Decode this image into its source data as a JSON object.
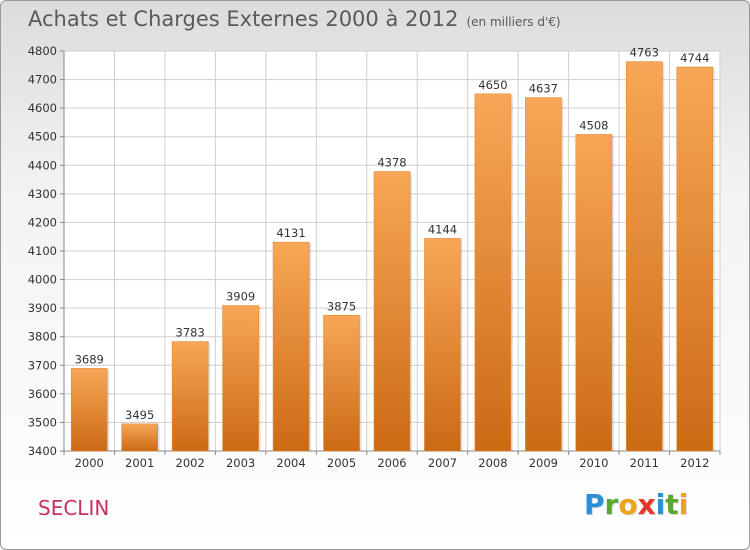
{
  "header": {
    "title": "Achats et Charges Externes 2000 à 2012",
    "subtitle": "(en milliers d'€)"
  },
  "commune": "SECLIN",
  "logo": {
    "letters": [
      "P",
      "r",
      "o",
      "x",
      "i",
      "t",
      "i"
    ],
    "colors": [
      "#2b8fd6",
      "#5aa832",
      "#f0a21a",
      "#e8352a",
      "#2b8fd6",
      "#5aa832",
      "#f0a21a"
    ]
  },
  "chart_data": {
    "type": "bar",
    "title": "Achats et Charges Externes 2000 à 2012",
    "subtitle": "(en milliers d'€)",
    "categories": [
      "2000",
      "2001",
      "2002",
      "2003",
      "2004",
      "2005",
      "2006",
      "2007",
      "2008",
      "2009",
      "2010",
      "2011",
      "2012"
    ],
    "values": [
      3689,
      3495,
      3783,
      3909,
      4131,
      3875,
      4378,
      4144,
      4650,
      4637,
      4508,
      4763,
      4744
    ],
    "ylim": [
      3400,
      4800
    ],
    "yticks": [
      3400,
      3500,
      3600,
      3700,
      3800,
      3900,
      4000,
      4100,
      4200,
      4300,
      4400,
      4500,
      4600,
      4700,
      4800
    ],
    "grid": true,
    "colors": {
      "bar_top": "#f7a757",
      "bar_bottom": "#cc6a14",
      "grid": "#cfcfcf"
    }
  }
}
